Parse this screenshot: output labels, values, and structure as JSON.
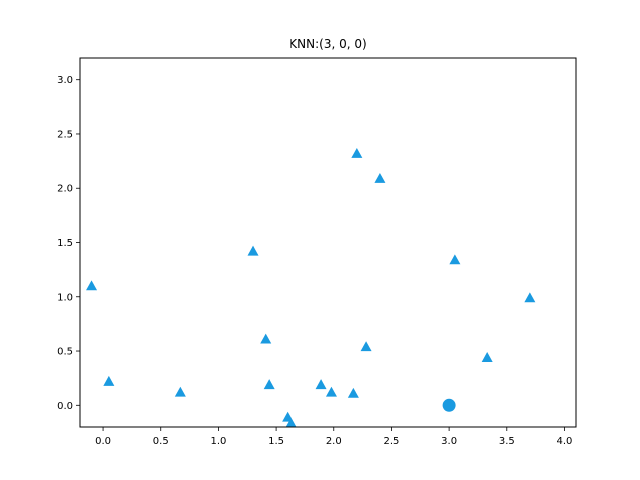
{
  "chart_data": {
    "type": "scatter",
    "title": "KNN:(3, 0, 0)",
    "xlabel": "",
    "ylabel": "",
    "xlim": [
      -0.2,
      4.1
    ],
    "ylim": [
      -0.2,
      3.2
    ],
    "xticks": [
      0.0,
      0.5,
      1.0,
      1.5,
      2.0,
      2.5,
      3.0,
      3.5,
      4.0
    ],
    "xtick_labels": [
      "0.0",
      "0.5",
      "1.0",
      "1.5",
      "2.0",
      "2.5",
      "3.0",
      "3.5",
      "4.0"
    ],
    "yticks": [
      0.0,
      0.5,
      1.0,
      1.5,
      2.0,
      2.5,
      3.0
    ],
    "ytick_labels": [
      "0.0",
      "0.5",
      "1.0",
      "1.5",
      "2.0",
      "2.5",
      "3.0"
    ],
    "grid": false,
    "colors": {
      "marker": "#1a9ae0",
      "axes": "#000000",
      "background": "#ffffff"
    },
    "series": [
      {
        "marker": "triangle",
        "points": [
          [
            -0.1,
            1.1
          ],
          [
            0.05,
            0.22
          ],
          [
            0.67,
            0.12
          ],
          [
            1.3,
            1.42
          ],
          [
            1.41,
            0.61
          ],
          [
            1.44,
            0.19
          ],
          [
            1.6,
            -0.11
          ],
          [
            1.63,
            -0.16
          ],
          [
            1.89,
            0.19
          ],
          [
            1.98,
            0.12
          ],
          [
            2.17,
            0.11
          ],
          [
            2.2,
            2.32
          ],
          [
            2.28,
            0.54
          ],
          [
            2.4,
            2.09
          ],
          [
            3.05,
            1.34
          ],
          [
            3.33,
            0.44
          ],
          [
            3.7,
            0.99
          ]
        ]
      },
      {
        "marker": "circle",
        "points": [
          [
            3.0,
            0.0
          ]
        ]
      }
    ]
  }
}
